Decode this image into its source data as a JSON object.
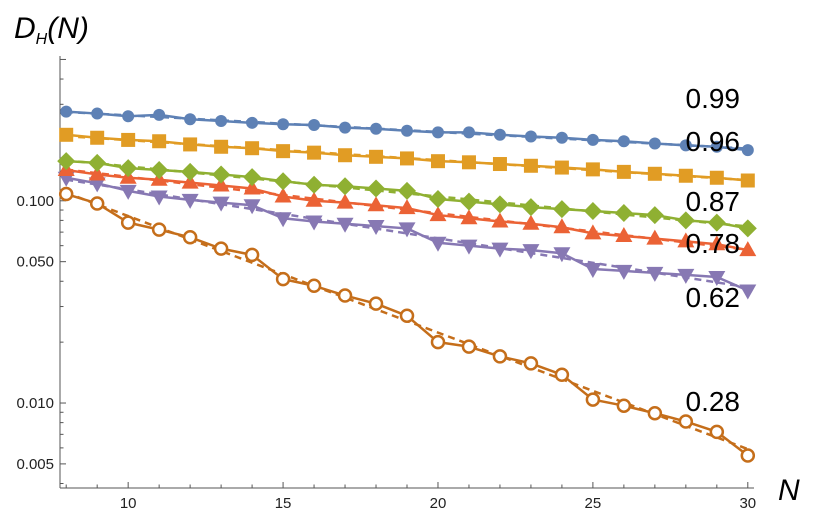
{
  "chart_data": {
    "type": "line",
    "title": "",
    "xlabel": "N",
    "ylabel": {
      "main": "D",
      "sub": "H",
      "arg": "(N)"
    },
    "xlim": [
      7.8,
      30.2
    ],
    "ylim": [
      0.0038,
      0.52
    ],
    "yscale": "log",
    "x_ticks": [
      "10",
      "15",
      "20",
      "25",
      "30"
    ],
    "y_ticks": [
      "0.005",
      "0.010",
      "0.050",
      "0.100"
    ],
    "grid": false,
    "x": [
      8,
      9,
      10,
      11,
      12,
      13,
      14,
      15,
      16,
      17,
      18,
      19,
      20,
      21,
      22,
      23,
      24,
      25,
      26,
      27,
      28,
      29,
      30
    ],
    "series": [
      {
        "label": "0.99",
        "color": "#5e81b5",
        "marker": "circle",
        "values": [
          0.276,
          0.27,
          0.262,
          0.266,
          0.253,
          0.248,
          0.243,
          0.239,
          0.237,
          0.23,
          0.227,
          0.222,
          0.218,
          0.218,
          0.212,
          0.208,
          0.205,
          0.2,
          0.197,
          0.192,
          0.188,
          0.185,
          0.178
        ]
      },
      {
        "label": "0.96",
        "color": "#e19c24",
        "marker": "square",
        "values": [
          0.212,
          0.205,
          0.2,
          0.197,
          0.19,
          0.185,
          0.182,
          0.176,
          0.173,
          0.168,
          0.165,
          0.162,
          0.157,
          0.155,
          0.152,
          0.149,
          0.146,
          0.143,
          0.139,
          0.136,
          0.133,
          0.13,
          0.126
        ]
      },
      {
        "label": "0.87",
        "color": "#8fb032",
        "marker": "diamond",
        "values": [
          0.157,
          0.154,
          0.145,
          0.142,
          0.139,
          0.135,
          0.131,
          0.125,
          0.12,
          0.118,
          0.115,
          0.112,
          0.102,
          0.099,
          0.096,
          0.093,
          0.091,
          0.089,
          0.087,
          0.085,
          0.08,
          0.078,
          0.073
        ]
      },
      {
        "label": "0.78",
        "color": "#eb6235",
        "marker": "triangle-up",
        "values": [
          0.142,
          0.135,
          0.13,
          0.127,
          0.123,
          0.119,
          0.115,
          0.105,
          0.1,
          0.098,
          0.095,
          0.092,
          0.085,
          0.082,
          0.079,
          0.077,
          0.074,
          0.069,
          0.067,
          0.065,
          0.063,
          0.061,
          0.057
        ]
      },
      {
        "label": "0.62",
        "color": "#8778b3",
        "marker": "triangle-down",
        "values": [
          0.13,
          0.122,
          0.112,
          0.105,
          0.101,
          0.098,
          0.095,
          0.082,
          0.079,
          0.077,
          0.075,
          0.073,
          0.062,
          0.06,
          0.058,
          0.057,
          0.055,
          0.046,
          0.045,
          0.044,
          0.043,
          0.042,
          0.036
        ]
      },
      {
        "label": "0.28",
        "color": "#c56e1a",
        "marker": "open-circle",
        "values": [
          0.108,
          0.097,
          0.078,
          0.072,
          0.066,
          0.058,
          0.054,
          0.041,
          0.038,
          0.034,
          0.031,
          0.027,
          0.02,
          0.019,
          0.017,
          0.0157,
          0.0138,
          0.0104,
          0.0097,
          0.0089,
          0.0081,
          0.0072,
          0.0055
        ]
      }
    ]
  }
}
